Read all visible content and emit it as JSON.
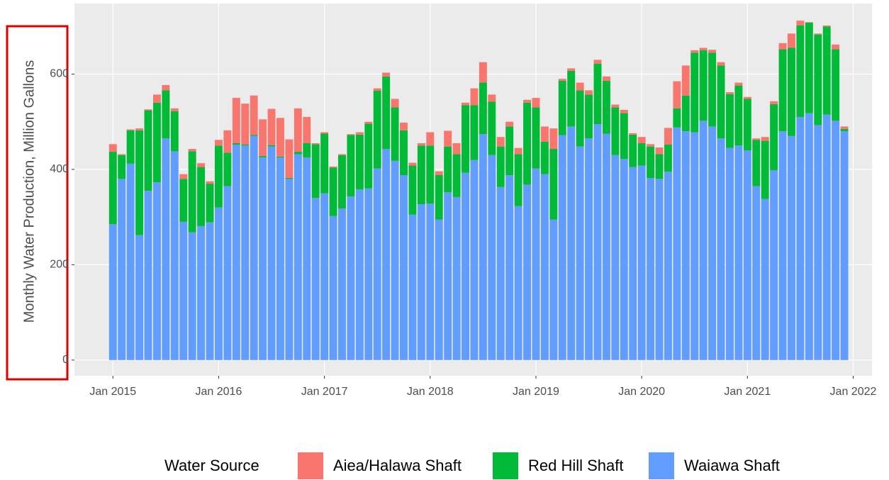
{
  "chart_data": {
    "type": "stacked_bar",
    "y_label": "Monthly Water Production, Million Gallons",
    "legend_title": "Water Source",
    "x": [
      "2015-01",
      "2015-02",
      "2015-03",
      "2015-04",
      "2015-05",
      "2015-06",
      "2015-07",
      "2015-08",
      "2015-09",
      "2015-10",
      "2015-11",
      "2015-12",
      "2016-01",
      "2016-02",
      "2016-03",
      "2016-04",
      "2016-05",
      "2016-06",
      "2016-07",
      "2016-08",
      "2016-09",
      "2016-10",
      "2016-11",
      "2016-12",
      "2017-01",
      "2017-02",
      "2017-03",
      "2017-04",
      "2017-05",
      "2017-06",
      "2017-07",
      "2017-08",
      "2017-09",
      "2017-10",
      "2017-11",
      "2017-12",
      "2018-01",
      "2018-02",
      "2018-03",
      "2018-04",
      "2018-05",
      "2018-06",
      "2018-07",
      "2018-08",
      "2018-09",
      "2018-10",
      "2018-11",
      "2018-12",
      "2019-01",
      "2019-02",
      "2019-03",
      "2019-04",
      "2019-05",
      "2019-06",
      "2019-07",
      "2019-08",
      "2019-09",
      "2019-10",
      "2019-11",
      "2019-12",
      "2020-01",
      "2020-02",
      "2020-03",
      "2020-04",
      "2020-05",
      "2020-06",
      "2020-07",
      "2020-08",
      "2020-09",
      "2020-10",
      "2020-11",
      "2020-12",
      "2021-01",
      "2021-02",
      "2021-03",
      "2021-04",
      "2021-05",
      "2021-06",
      "2021-07",
      "2021-08",
      "2021-09",
      "2021-10",
      "2021-11",
      "2021-12"
    ],
    "series": [
      {
        "name": "Aiea/Halawa Shaft",
        "color": "#F8766D",
        "values": [
          16,
          2,
          2,
          4,
          2,
          17,
          11,
          6,
          10,
          5,
          8,
          5,
          12,
          47,
          95,
          86,
          83,
          77,
          76,
          81,
          81,
          91,
          55,
          2,
          3,
          2,
          2,
          2,
          5,
          4,
          5,
          8,
          18,
          16,
          6,
          5,
          28,
          8,
          33,
          23,
          5,
          35,
          43,
          15,
          20,
          10,
          13,
          6,
          20,
          32,
          43,
          4,
          5,
          16,
          9,
          8,
          9,
          6,
          7,
          3,
          13,
          5,
          14,
          35,
          57,
          63,
          5,
          5,
          6,
          7,
          4,
          6,
          4,
          3,
          8,
          6,
          13,
          30,
          10,
          1,
          2,
          2,
          10,
          5
        ]
      },
      {
        "name": "Red Hill Shaft",
        "color": "#00BA38",
        "values": [
          152,
          50,
          70,
          220,
          169,
          167,
          101,
          84,
          90,
          170,
          124,
          81,
          130,
          70,
          3,
          2,
          2,
          3,
          3,
          2,
          2,
          5,
          30,
          113,
          125,
          102,
          112,
          129,
          115,
          136,
          163,
          152,
          112,
          94,
          103,
          123,
          122,
          93,
          96,
          90,
          142,
          115,
          108,
          112,
          85,
          102,
          109,
          172,
          128,
          68,
          148,
          114,
          117,
          118,
          92,
          127,
          111,
          100,
          96,
          68,
          47,
          66,
          52,
          57,
          40,
          75,
          167,
          148,
          155,
          153,
          113,
          126,
          108,
          97,
          122,
          139,
          172,
          185,
          192,
          190,
          190,
          185,
          150,
          5
        ]
      },
      {
        "name": "Waiawa Shaft",
        "color": "#619CFF",
        "values": [
          285,
          380,
          412,
          262,
          355,
          373,
          465,
          438,
          290,
          268,
          281,
          289,
          320,
          365,
          452,
          450,
          470,
          425,
          448,
          425,
          380,
          432,
          425,
          340,
          350,
          302,
          318,
          343,
          358,
          360,
          402,
          443,
          418,
          388,
          305,
          327,
          328,
          295,
          352,
          342,
          393,
          420,
          474,
          430,
          363,
          388,
          323,
          368,
          402,
          390,
          295,
          472,
          490,
          448,
          465,
          495,
          475,
          430,
          422,
          405,
          408,
          382,
          380,
          395,
          488,
          480,
          478,
          502,
          490,
          465,
          445,
          450,
          440,
          365,
          338,
          398,
          480,
          470,
          510,
          518,
          493,
          515,
          502,
          480
        ]
      }
    ],
    "xlim": [
      "2014-08-20",
      "2022-03-05"
    ],
    "xticks": [
      {
        "value": "2015-01",
        "label": "Jan 2015"
      },
      {
        "value": "2016-01",
        "label": "Jan 2016"
      },
      {
        "value": "2017-01",
        "label": "Jan 2017"
      },
      {
        "value": "2018-01",
        "label": "Jan 2018"
      },
      {
        "value": "2019-01",
        "label": "Jan 2019"
      },
      {
        "value": "2020-01",
        "label": "Jan 2020"
      },
      {
        "value": "2021-01",
        "label": "Jan 2021"
      },
      {
        "value": "2022-01",
        "label": "Jan 2022"
      }
    ],
    "ylim": [
      -33,
      748
    ],
    "yticks": [
      0,
      200,
      400,
      600
    ],
    "grid": true
  }
}
